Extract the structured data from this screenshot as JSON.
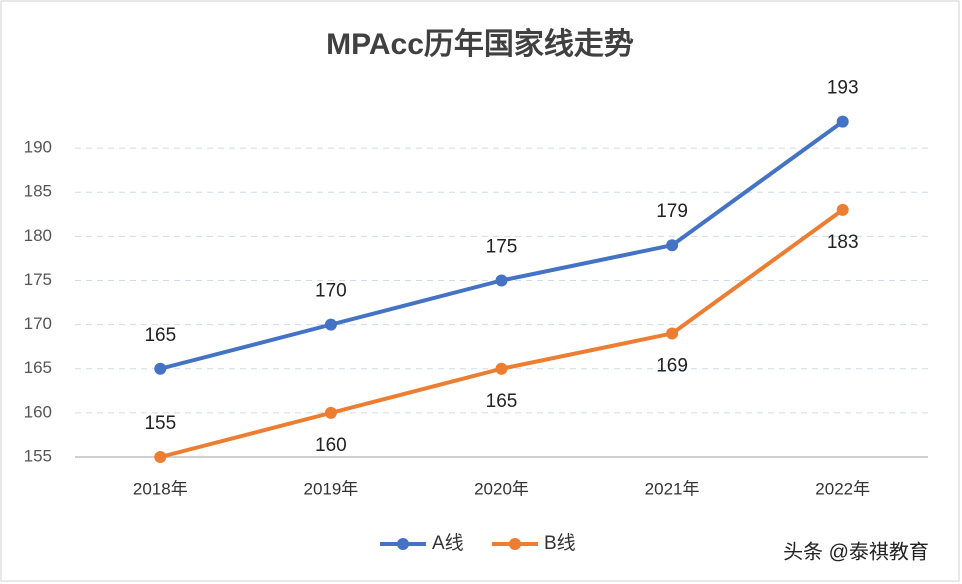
{
  "chart_data": {
    "type": "line",
    "title": "MPAcc历年国家线走势",
    "categories": [
      "2018年",
      "2019年",
      "2020年",
      "2021年",
      "2022年"
    ],
    "series": [
      {
        "name": "A线",
        "color": "#4472c4",
        "values": [
          165,
          170,
          175,
          179,
          193
        ]
      },
      {
        "name": "B线",
        "color": "#ed7d31",
        "values": [
          155,
          160,
          165,
          169,
          183
        ]
      }
    ],
    "ylim": [
      155,
      195
    ],
    "yticks": [
      155,
      160,
      165,
      170,
      175,
      180,
      185,
      190
    ],
    "grid": true,
    "legend": "bottom",
    "watermark": "头条 @泰祺教育"
  }
}
